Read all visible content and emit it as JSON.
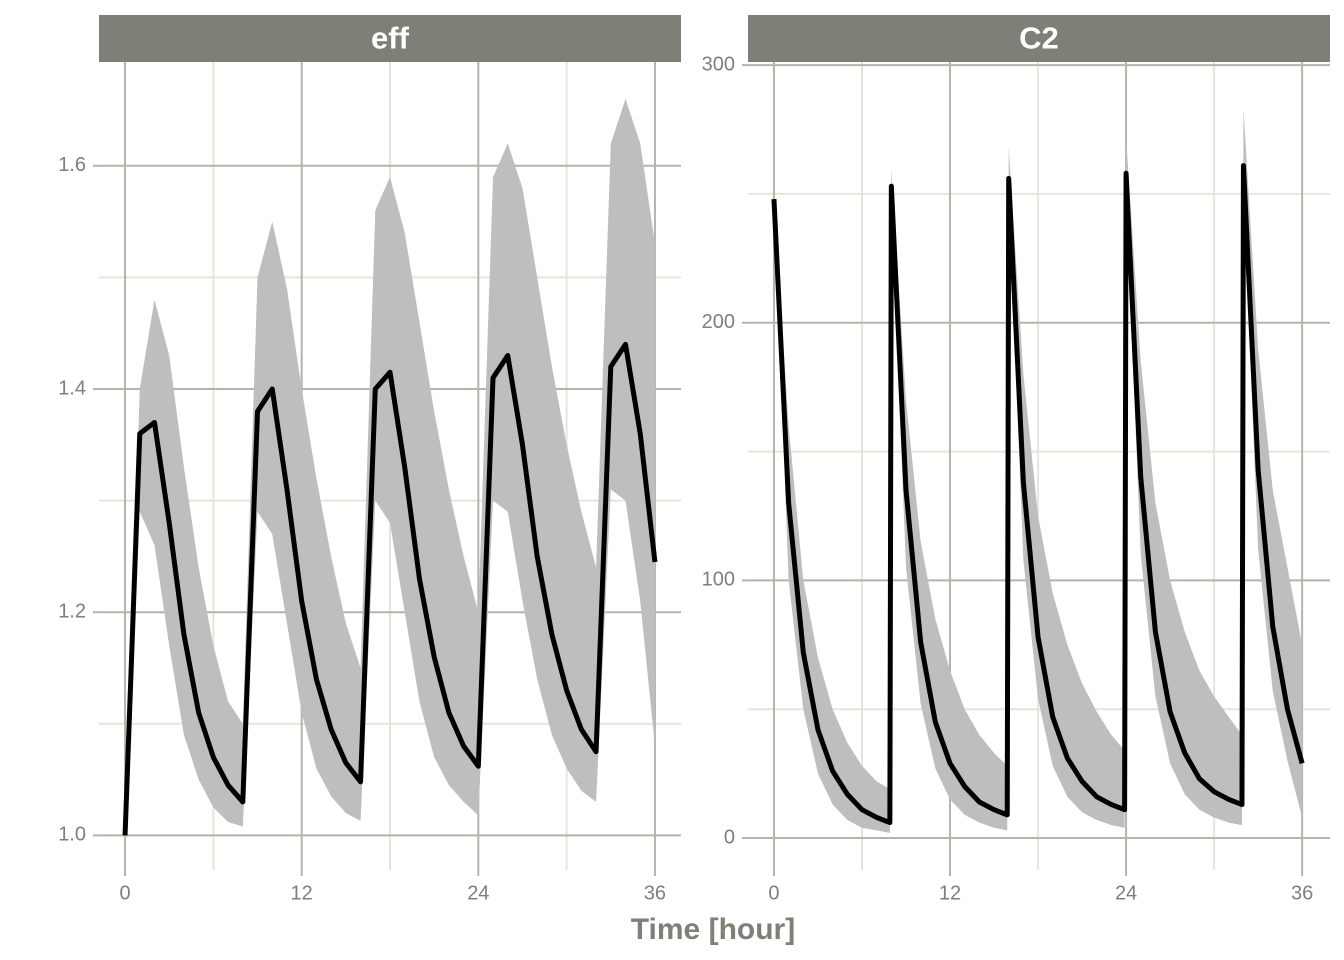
{
  "xlabel": "Time [hour]",
  "chart_data": [
    {
      "type": "line",
      "title": "eff",
      "color": "#000000",
      "band_color": "#bebebe",
      "grid": true,
      "x": [
        0,
        1,
        2,
        3,
        4,
        5,
        6,
        7,
        8,
        9,
        10,
        11,
        12,
        13,
        14,
        15,
        16,
        17,
        18,
        19,
        20,
        21,
        22,
        23,
        24,
        25,
        26,
        27,
        28,
        29,
        30,
        31,
        32,
        33,
        34,
        35,
        36
      ],
      "values": [
        1.0,
        1.36,
        1.37,
        1.28,
        1.18,
        1.11,
        1.07,
        1.045,
        1.03,
        1.38,
        1.4,
        1.31,
        1.21,
        1.14,
        1.095,
        1.065,
        1.048,
        1.4,
        1.415,
        1.33,
        1.23,
        1.16,
        1.11,
        1.08,
        1.062,
        1.41,
        1.43,
        1.35,
        1.25,
        1.18,
        1.13,
        1.095,
        1.075,
        1.42,
        1.44,
        1.36,
        1.245
      ],
      "upper": [
        1.0,
        1.4,
        1.48,
        1.43,
        1.33,
        1.24,
        1.17,
        1.12,
        1.1,
        1.5,
        1.55,
        1.49,
        1.4,
        1.32,
        1.25,
        1.19,
        1.15,
        1.56,
        1.59,
        1.54,
        1.46,
        1.38,
        1.31,
        1.25,
        1.2,
        1.59,
        1.62,
        1.58,
        1.5,
        1.42,
        1.35,
        1.29,
        1.24,
        1.62,
        1.66,
        1.62,
        1.53
      ],
      "lower": [
        1.0,
        1.29,
        1.26,
        1.17,
        1.09,
        1.05,
        1.025,
        1.012,
        1.008,
        1.29,
        1.27,
        1.19,
        1.11,
        1.06,
        1.035,
        1.02,
        1.013,
        1.3,
        1.28,
        1.2,
        1.12,
        1.07,
        1.045,
        1.03,
        1.018,
        1.3,
        1.29,
        1.21,
        1.14,
        1.09,
        1.06,
        1.04,
        1.03,
        1.31,
        1.3,
        1.21,
        1.08
      ],
      "xlim": [
        -1.77,
        37.77
      ],
      "xticks": [
        0,
        12,
        24,
        36
      ],
      "x_minor_ticks": [
        6,
        18,
        30
      ],
      "ylim": [
        0.969,
        1.693
      ],
      "yticks": [
        {
          "value": 1,
          "label": "1.0"
        },
        1.2,
        1.4,
        1.6
      ],
      "y_minor_ticks": [
        1.1,
        1.3,
        1.5
      ]
    },
    {
      "type": "line",
      "title": "C2",
      "color": "#000000",
      "band_color": "#bebebe",
      "grid": true,
      "x": [
        0,
        1,
        2,
        3,
        4,
        5,
        6,
        7,
        7.9,
        8,
        9,
        10,
        11,
        12,
        13,
        14,
        15,
        15.9,
        16,
        17,
        18,
        19,
        20,
        21,
        22,
        23,
        23.9,
        24,
        25,
        26,
        27,
        28,
        29,
        30,
        31,
        31.9,
        32,
        33,
        34,
        35,
        36
      ],
      "values": [
        248,
        130,
        72,
        42,
        26,
        17,
        11,
        8,
        6,
        253,
        135,
        76,
        45,
        29,
        20,
        14,
        11,
        9,
        256,
        138,
        78,
        47,
        31,
        22,
        16,
        13,
        11,
        258,
        140,
        80,
        49,
        33,
        23,
        18,
        15,
        13,
        261,
        143,
        82,
        50,
        29
      ],
      "upper": [
        248,
        160,
        100,
        70,
        50,
        37,
        28,
        22,
        19,
        260,
        170,
        115,
        85,
        65,
        50,
        40,
        33,
        28,
        268,
        180,
        125,
        95,
        75,
        60,
        49,
        40,
        34,
        272,
        185,
        130,
        100,
        80,
        65,
        55,
        47,
        40,
        283,
        190,
        135,
        105,
        75
      ],
      "lower": [
        248,
        100,
        50,
        25,
        13,
        7,
        4,
        3,
        2,
        245,
        105,
        52,
        27,
        15,
        9,
        6,
        4,
        3,
        247,
        108,
        54,
        28,
        16,
        10,
        7,
        5,
        4,
        249,
        110,
        55,
        29,
        17,
        11,
        8,
        6,
        5,
        250,
        112,
        57,
        30,
        8
      ],
      "xlim": [
        -1.77,
        37.9
      ],
      "xticks": [
        0,
        12,
        24,
        36
      ],
      "x_minor_ticks": [
        6,
        18,
        30
      ],
      "ylim": [
        -12.4,
        301.2
      ],
      "yticks": [
        0,
        100,
        200,
        300
      ],
      "y_minor_ticks": [
        50,
        150,
        250
      ]
    }
  ]
}
